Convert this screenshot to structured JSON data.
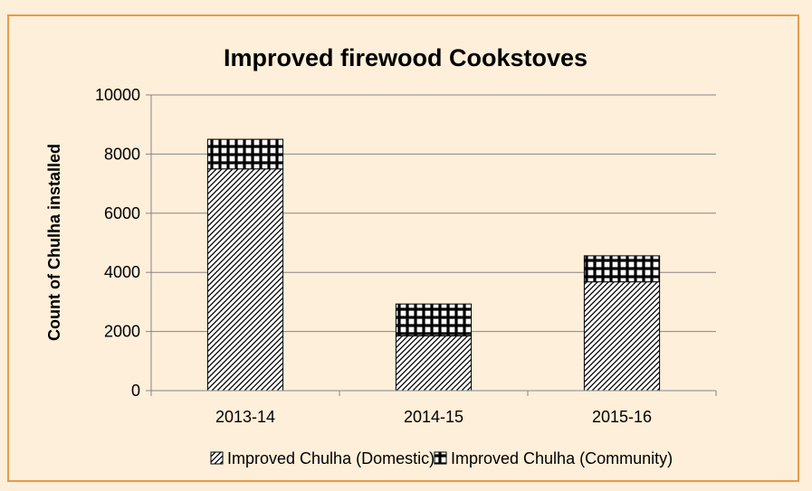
{
  "chart_data": {
    "type": "bar",
    "stacked": true,
    "title": "Improved firewood Cookstoves",
    "xlabel": "",
    "ylabel": "Count of Chulha installed",
    "categories": [
      "2013-14",
      "2014-15",
      "2015-16"
    ],
    "series": [
      {
        "name": "Improved Chulha (Domestic)",
        "values": [
          7500,
          1850,
          3680
        ],
        "pattern": "diagonal-hatch"
      },
      {
        "name": "Improved Chulha (Community)",
        "values": [
          1000,
          1080,
          880
        ],
        "pattern": "grid-check"
      }
    ],
    "ylim": [
      0,
      10000
    ],
    "yticks": [
      0,
      2000,
      4000,
      6000,
      8000,
      10000
    ],
    "grid": true,
    "legend_position": "bottom",
    "colors": {
      "background": "#FDEFD9",
      "border": "#E69B4A",
      "gridline": "#868686",
      "bar_outline": "#000000",
      "plot_background": "#FFFFFF"
    }
  }
}
